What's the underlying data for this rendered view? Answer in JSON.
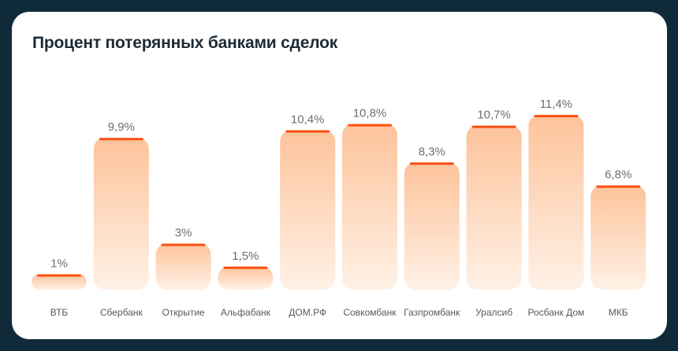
{
  "chart_data": {
    "type": "bar",
    "title": "Процент потерянных банками сделок",
    "categories": [
      "ВТБ",
      "Сбербанк",
      "Открытие",
      "Альфабанк",
      "ДОМ.РФ",
      "Совкомбанк",
      "Газпромбанк",
      "Уралсиб",
      "Росбанк Дом",
      "МКБ"
    ],
    "values": [
      1,
      9.9,
      3,
      1.5,
      10.4,
      10.8,
      8.3,
      10.7,
      11.4,
      6.8
    ],
    "value_labels": [
      "1%",
      "9,9%",
      "3%",
      "1,5%",
      "10,4%",
      "10,8%",
      "8,3%",
      "10,7%",
      "11,4%",
      "6,8%"
    ],
    "xlabel": "",
    "ylabel": "",
    "ylim": [
      0,
      11.4
    ],
    "grid": false,
    "colors": {
      "bar_top": "#fdc39a",
      "bar_bottom": "#fff1e6",
      "bar_cap": "#fb4f12"
    }
  }
}
